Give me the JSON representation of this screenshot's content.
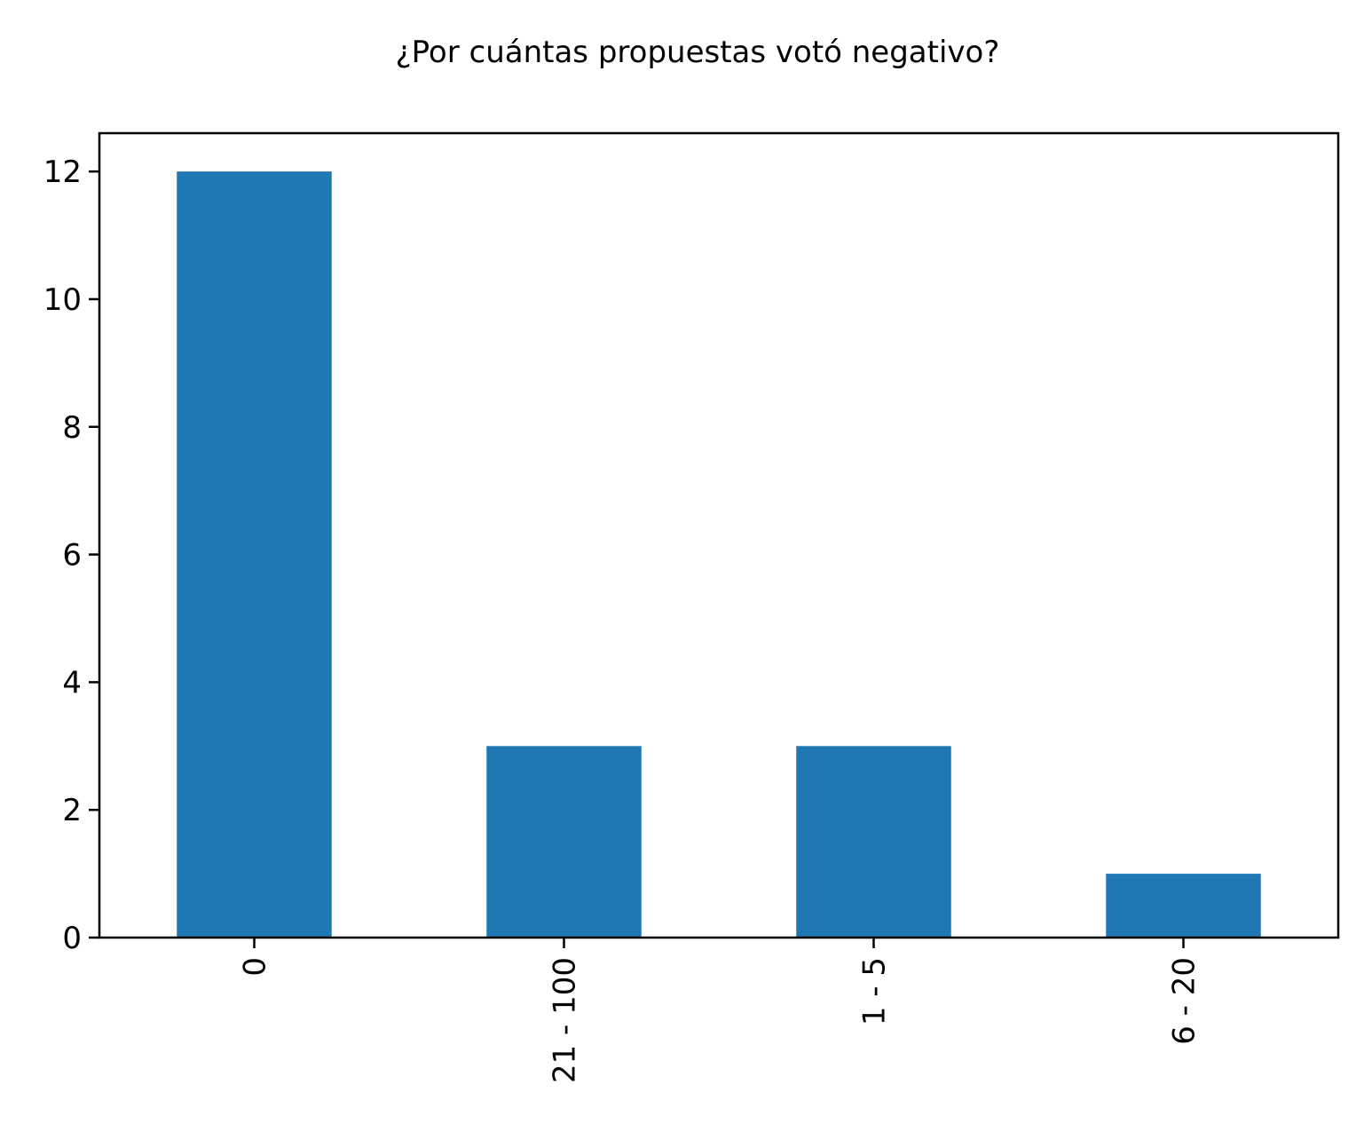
{
  "chart_data": {
    "type": "bar",
    "title": "¿Por cuántas propuestas votó negativo?",
    "xlabel": "",
    "ylabel": "",
    "categories": [
      "0",
      "21 - 100",
      "1 - 5",
      "6 - 20"
    ],
    "values": [
      12,
      3,
      3,
      1
    ],
    "ylim": [
      0,
      12.6
    ],
    "yticks": [
      0,
      2,
      4,
      6,
      8,
      10,
      12
    ],
    "xtick_rotation": "vertical",
    "bar_color": "#1f77b4",
    "grid": false,
    "legend": "none"
  }
}
